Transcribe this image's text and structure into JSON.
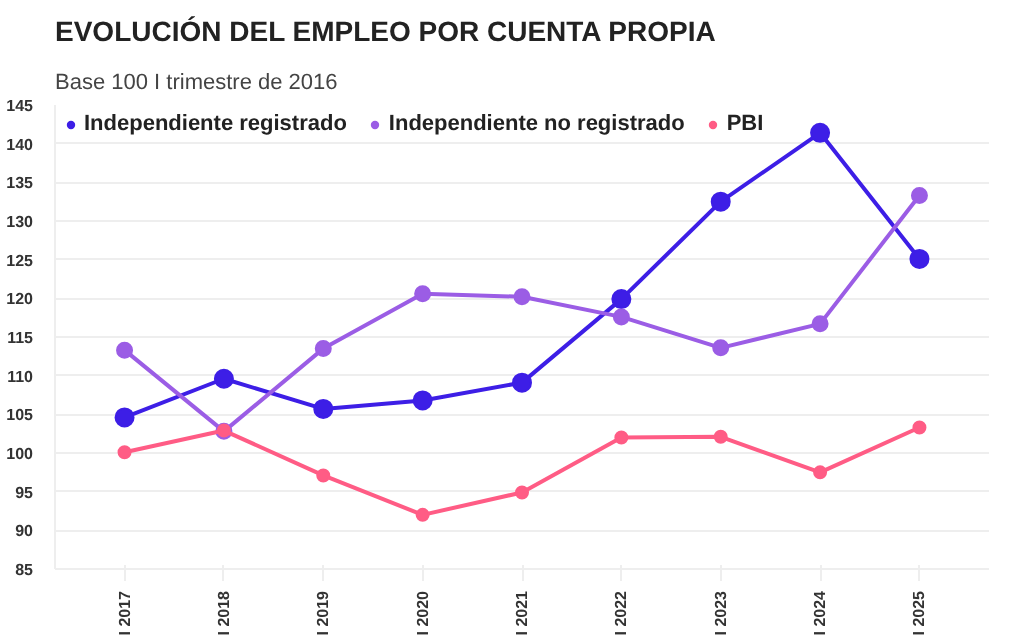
{
  "chart_data": {
    "type": "line",
    "title": "EVOLUCIÓN DEL EMPLEO POR CUENTA PROPIA",
    "subtitle": "Base 100 I trimestre de 2016",
    "categories": [
      "I 2017",
      "I 2018",
      "I 2019",
      "I 2020",
      "I 2021",
      "I 2022",
      "I 2023",
      "I 2024",
      "I 2025"
    ],
    "series": [
      {
        "name": "Independiente registrado",
        "color": "#3d1ee6",
        "values": [
          104.6,
          109.6,
          105.7,
          106.8,
          109.1,
          119.9,
          132.5,
          141.4,
          125.1
        ]
      },
      {
        "name": "Independiente no registrado",
        "color": "#9b5de5",
        "values": [
          113.3,
          102.8,
          113.5,
          120.6,
          120.2,
          117.6,
          113.6,
          116.7,
          133.3
        ]
      },
      {
        "name": "PBI",
        "color": "#ff5c85",
        "values": [
          100.1,
          102.9,
          97.1,
          92.0,
          94.9,
          102.0,
          102.1,
          97.5,
          103.3
        ]
      }
    ],
    "ylim": [
      85,
      145
    ],
    "yticks": [
      85,
      90,
      95,
      100,
      105,
      110,
      115,
      120,
      125,
      130,
      135,
      140,
      145
    ],
    "grid": "y",
    "legend": "top left",
    "marker": "circle",
    "line_style": "solid"
  }
}
